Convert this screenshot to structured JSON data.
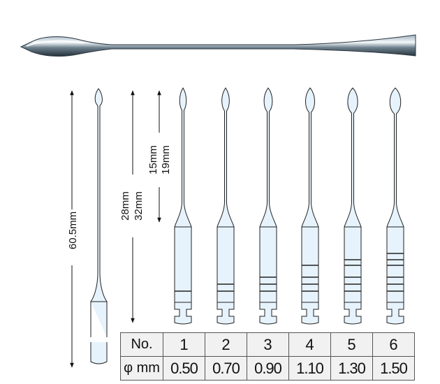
{
  "dimensions": {
    "overall_length": "60.5mm",
    "working_length": [
      "28mm",
      "32mm"
    ],
    "cutting_length": [
      "15mm",
      "19mm"
    ]
  },
  "table": {
    "row_headers": [
      "No.",
      "φ mm"
    ],
    "sizes": [
      "1",
      "2",
      "3",
      "4",
      "5",
      "6"
    ],
    "diameters": [
      "0.50",
      "0.70",
      "0.90",
      "1.10",
      "1.30",
      "1.50"
    ]
  },
  "colors": {
    "instrument_fill": "#e6f3fc",
    "outline": "#222222"
  }
}
